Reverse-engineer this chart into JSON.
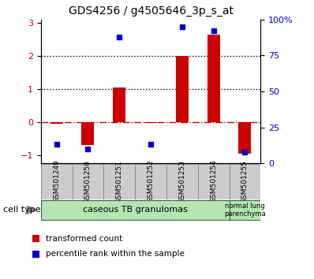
{
  "title": "GDS4256 / g4505646_3p_s_at",
  "samples": [
    "GSM501249",
    "GSM501250",
    "GSM501251",
    "GSM501252",
    "GSM501253",
    "GSM501254",
    "GSM501255"
  ],
  "red_bars": [
    -0.05,
    -0.7,
    1.05,
    -0.02,
    2.0,
    2.65,
    -0.95
  ],
  "blue_dots": [
    13,
    10,
    88,
    13,
    95,
    92,
    8
  ],
  "ylim_left": [
    -1.25,
    3.1
  ],
  "ylim_right": [
    0,
    100
  ],
  "bar_color": "#cc0000",
  "dot_color": "#0000cc",
  "hline_color": "#cc0000",
  "dotted_lines": [
    1.0,
    2.0
  ],
  "dotted_color": "black",
  "cell_type_label": "cell type",
  "legend_red": "transformed count",
  "legend_blue": "percentile rank within the sample",
  "left_yticks": [
    -1,
    0,
    1,
    2,
    3
  ],
  "right_ytick_vals": [
    0,
    25,
    50,
    75,
    100
  ],
  "right_ytick_labels": [
    "0",
    "25",
    "50",
    "75",
    "100%"
  ],
  "title_fontsize": 10,
  "tick_fontsize": 8,
  "group1_label": "caseous TB granulomas",
  "group1_indices": [
    0,
    1,
    2,
    3,
    4,
    5
  ],
  "group2_label": "normal lung\nparenchyma",
  "group2_indices": [
    6
  ],
  "group_color": "#b2e6b2"
}
